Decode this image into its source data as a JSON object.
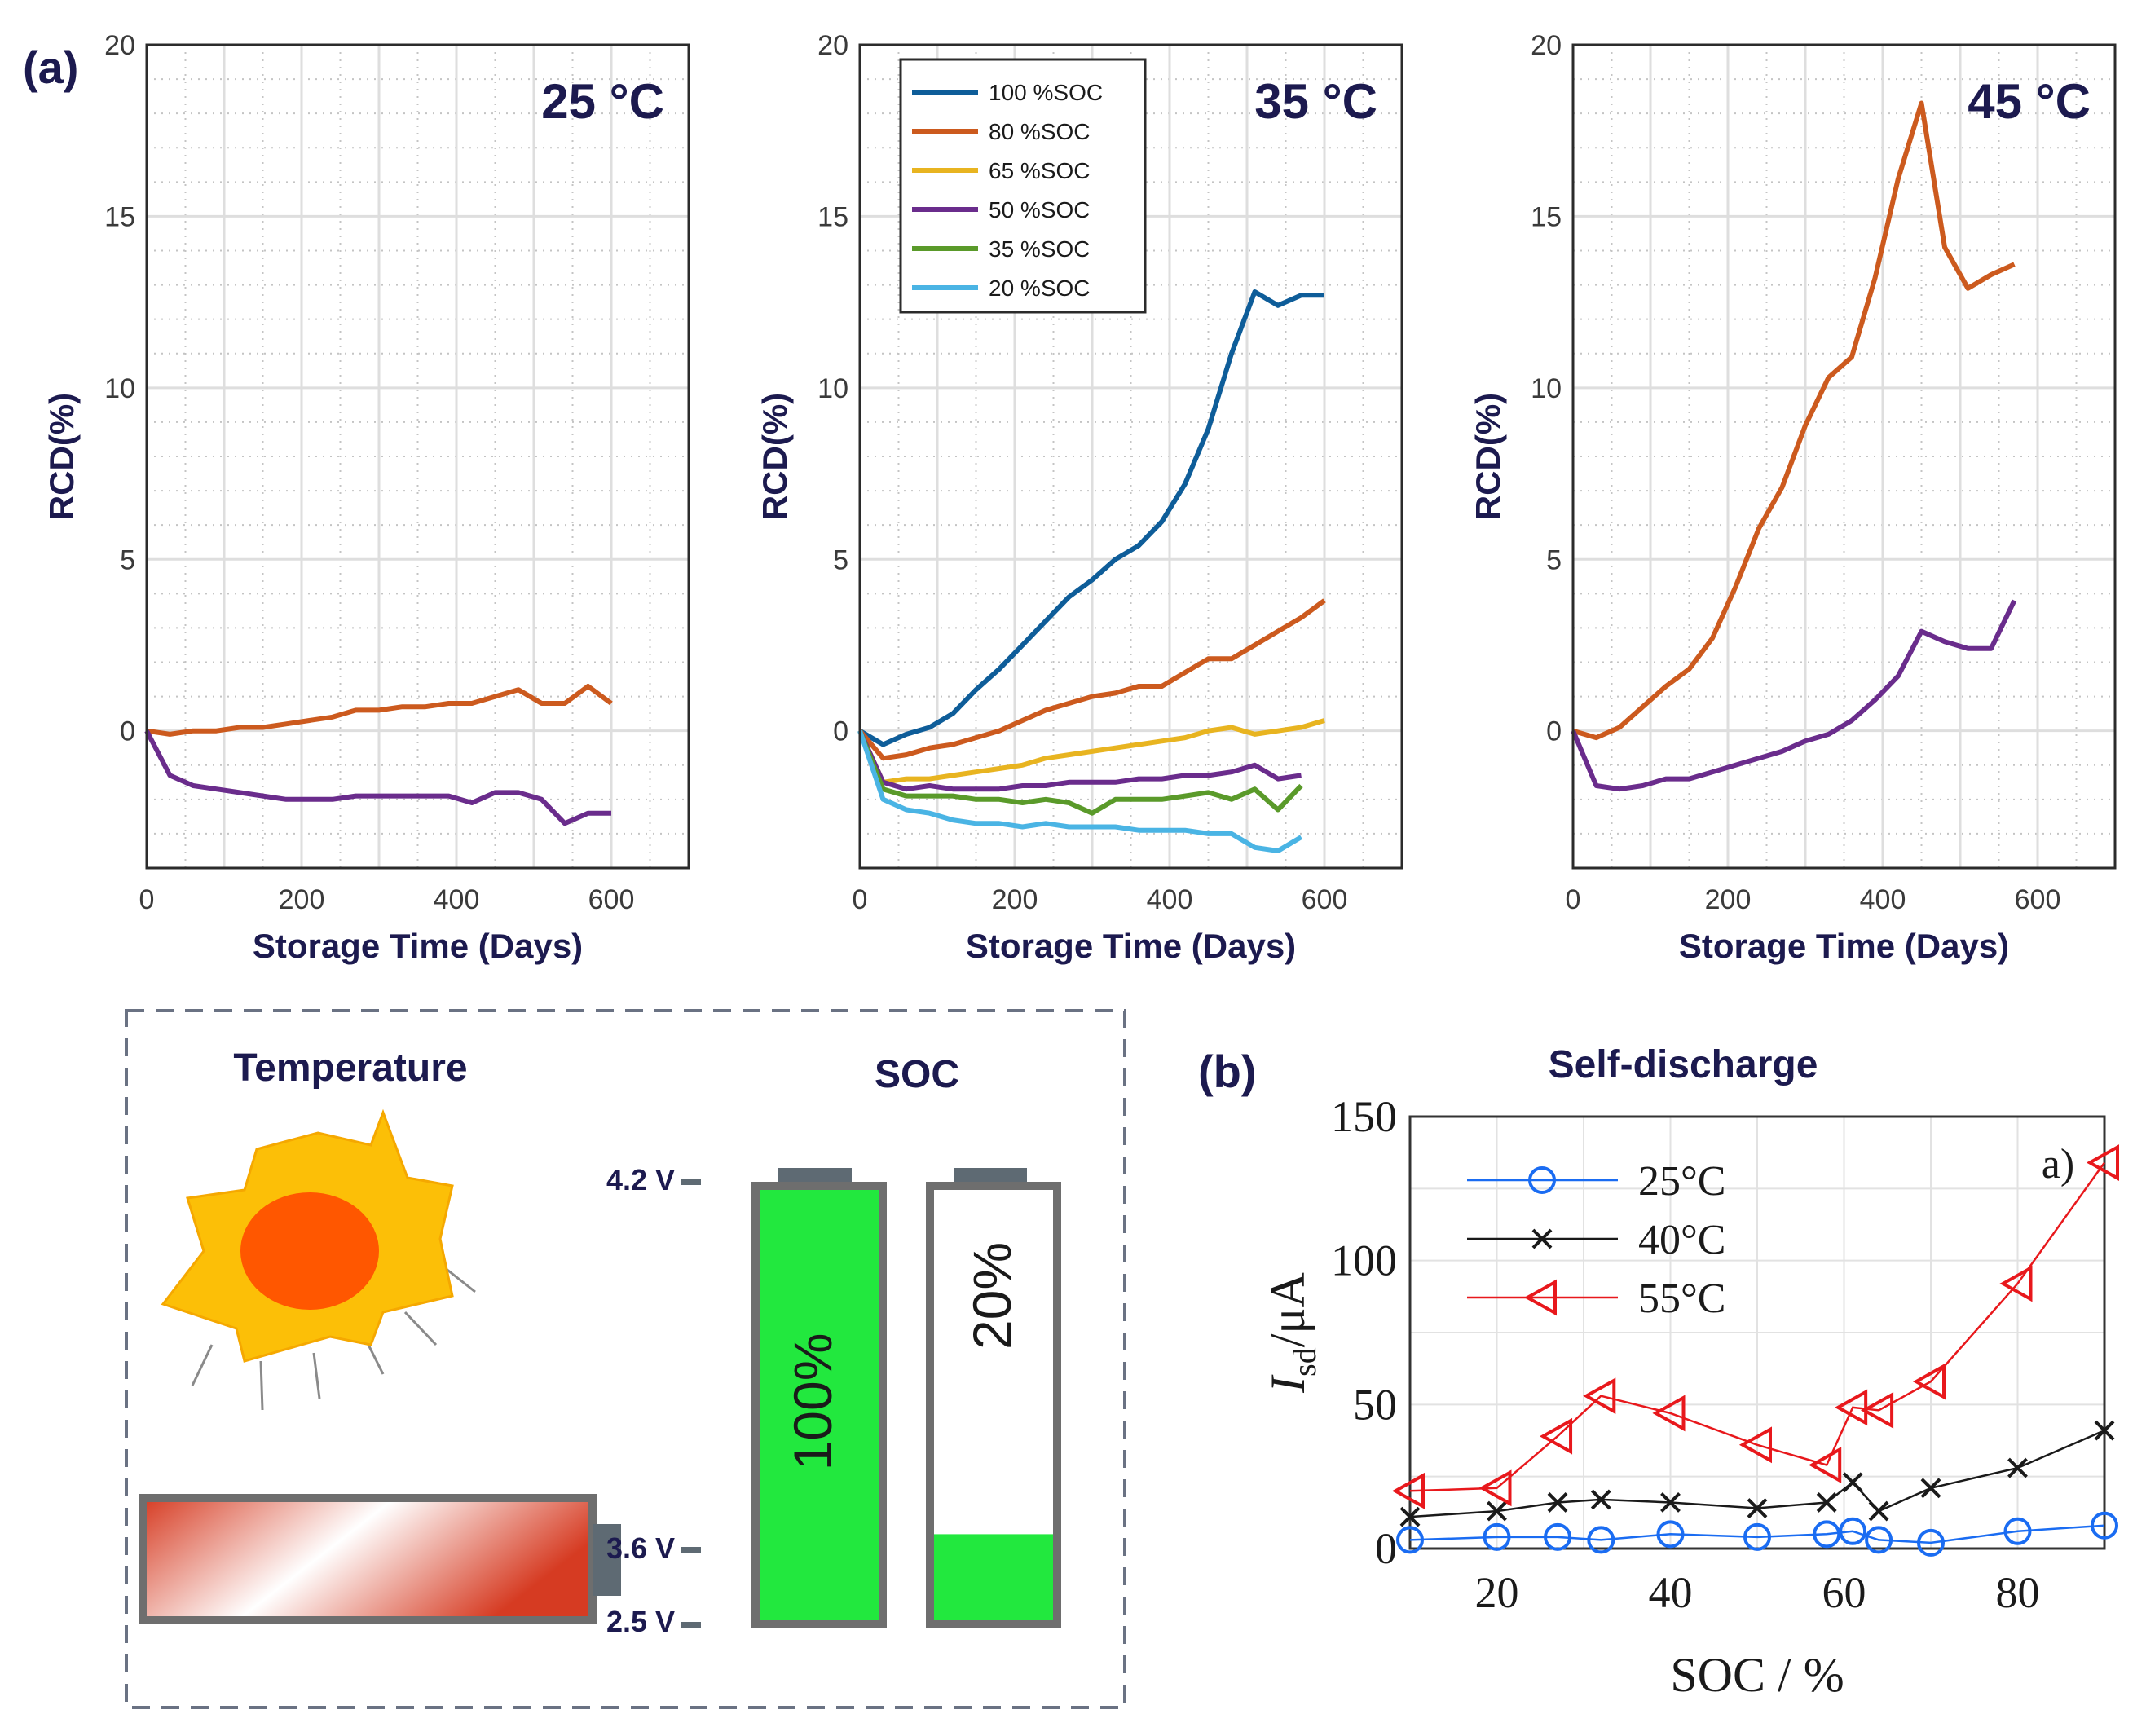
{
  "panel_a_label": "(a)",
  "panel_b_label": "(b)",
  "colors": {
    "soc100": "#0e5d99",
    "soc80": "#cc5a1e",
    "soc65": "#e8b420",
    "soc50": "#6a2c8c",
    "soc35": "#5a9a2a",
    "soc20": "#4ab4e4",
    "c25": "#1a6cf2",
    "c40": "#1a1a1a",
    "c55": "#e8181c",
    "navy": "#1c1a4f",
    "battery_green": "#22e83e"
  },
  "chart_data": [
    {
      "type": "line",
      "title": "25 °C",
      "xlabel": "Storage Time (Days)",
      "ylabel": "RCD(%)",
      "xlim": [
        0,
        700
      ],
      "ylim": [
        -4,
        20
      ],
      "xticks": [
        "0",
        "200",
        "400",
        "600"
      ],
      "yticks": [
        "0",
        "5",
        "10",
        "15",
        "20"
      ],
      "series": [
        {
          "name": "80 %SOC",
          "color": "#cc5a1e",
          "x": [
            0,
            30,
            60,
            90,
            120,
            150,
            180,
            210,
            240,
            270,
            300,
            330,
            360,
            390,
            420,
            450,
            480,
            510,
            540,
            570,
            600
          ],
          "y": [
            0,
            -0.1,
            0,
            0,
            0.1,
            0.1,
            0.2,
            0.3,
            0.4,
            0.6,
            0.6,
            0.7,
            0.7,
            0.8,
            0.8,
            1.0,
            1.2,
            0.8,
            0.8,
            1.3,
            0.8
          ]
        },
        {
          "name": "50 %SOC",
          "color": "#6a2c8c",
          "x": [
            0,
            30,
            60,
            90,
            120,
            150,
            180,
            210,
            240,
            270,
            300,
            330,
            360,
            390,
            420,
            450,
            480,
            510,
            540,
            570,
            600
          ],
          "y": [
            0,
            -1.3,
            -1.6,
            -1.7,
            -1.8,
            -1.9,
            -2.0,
            -2.0,
            -2.0,
            -1.9,
            -1.9,
            -1.9,
            -1.9,
            -1.9,
            -2.1,
            -1.8,
            -1.8,
            -2.0,
            -2.7,
            -2.4,
            -2.4
          ]
        }
      ]
    },
    {
      "type": "line",
      "title": "35 °C",
      "xlabel": "Storage Time (Days)",
      "ylabel": "RCD(%)",
      "xlim": [
        0,
        700
      ],
      "ylim": [
        -4,
        20
      ],
      "xticks": [
        "0",
        "200",
        "400",
        "600"
      ],
      "yticks": [
        "0",
        "5",
        "10",
        "15",
        "20"
      ],
      "legend": [
        "100 %SOC",
        "80 %SOC",
        "65 %SOC",
        "50 %SOC",
        "35 %SOC",
        "20 %SOC"
      ],
      "series": [
        {
          "name": "100 %SOC",
          "color": "#0e5d99",
          "x": [
            0,
            30,
            60,
            90,
            120,
            150,
            180,
            210,
            240,
            270,
            300,
            330,
            360,
            390,
            420,
            450,
            480,
            510,
            540,
            570,
            600
          ],
          "y": [
            0,
            -0.4,
            -0.1,
            0.1,
            0.5,
            1.2,
            1.8,
            2.5,
            3.2,
            3.9,
            4.4,
            5.0,
            5.4,
            6.1,
            7.2,
            8.8,
            11.0,
            12.8,
            12.4,
            12.7,
            12.7
          ]
        },
        {
          "name": "80 %SOC",
          "color": "#cc5a1e",
          "x": [
            0,
            30,
            60,
            90,
            120,
            150,
            180,
            210,
            240,
            270,
            300,
            330,
            360,
            390,
            420,
            450,
            480,
            510,
            540,
            570,
            600
          ],
          "y": [
            0,
            -0.8,
            -0.7,
            -0.5,
            -0.4,
            -0.2,
            0,
            0.3,
            0.6,
            0.8,
            1.0,
            1.1,
            1.3,
            1.3,
            1.7,
            2.1,
            2.1,
            2.5,
            2.9,
            3.3,
            3.8
          ]
        },
        {
          "name": "65 %SOC",
          "color": "#e8b420",
          "x": [
            0,
            30,
            60,
            90,
            120,
            150,
            180,
            210,
            240,
            270,
            300,
            330,
            360,
            390,
            420,
            450,
            480,
            510,
            540,
            570,
            600
          ],
          "y": [
            0,
            -1.5,
            -1.4,
            -1.4,
            -1.3,
            -1.2,
            -1.1,
            -1.0,
            -0.8,
            -0.7,
            -0.6,
            -0.5,
            -0.4,
            -0.3,
            -0.2,
            0,
            0.1,
            -0.1,
            0,
            0.1,
            0.3
          ]
        },
        {
          "name": "50 %SOC",
          "color": "#6a2c8c",
          "x": [
            0,
            30,
            60,
            90,
            120,
            150,
            180,
            210,
            240,
            270,
            300,
            330,
            360,
            390,
            420,
            450,
            480,
            510,
            540,
            570
          ],
          "y": [
            0,
            -1.5,
            -1.7,
            -1.6,
            -1.7,
            -1.7,
            -1.7,
            -1.6,
            -1.6,
            -1.5,
            -1.5,
            -1.5,
            -1.4,
            -1.4,
            -1.3,
            -1.3,
            -1.2,
            -1.0,
            -1.4,
            -1.3
          ]
        },
        {
          "name": "35 %SOC",
          "color": "#5a9a2a",
          "x": [
            0,
            30,
            60,
            90,
            120,
            150,
            180,
            210,
            240,
            270,
            300,
            330,
            360,
            390,
            420,
            450,
            480,
            510,
            540,
            570
          ],
          "y": [
            0,
            -1.7,
            -1.9,
            -1.9,
            -1.9,
            -2.0,
            -2.0,
            -2.1,
            -2.0,
            -2.1,
            -2.4,
            -2.0,
            -2.0,
            -2.0,
            -1.9,
            -1.8,
            -2.0,
            -1.7,
            -2.3,
            -1.6
          ]
        },
        {
          "name": "20 %SOC",
          "color": "#4ab4e4",
          "x": [
            0,
            30,
            60,
            90,
            120,
            150,
            180,
            210,
            240,
            270,
            300,
            330,
            360,
            390,
            420,
            450,
            480,
            510,
            540,
            570
          ],
          "y": [
            0,
            -2.0,
            -2.3,
            -2.4,
            -2.6,
            -2.7,
            -2.7,
            -2.8,
            -2.7,
            -2.8,
            -2.8,
            -2.8,
            -2.9,
            -2.9,
            -2.9,
            -3.0,
            -3.0,
            -3.4,
            -3.5,
            -3.1
          ]
        }
      ]
    },
    {
      "type": "line",
      "title": "45 °C",
      "xlabel": "Storage Time (Days)",
      "ylabel": "RCD(%)",
      "xlim": [
        0,
        700
      ],
      "ylim": [
        -4,
        20
      ],
      "xticks": [
        "0",
        "200",
        "400",
        "600"
      ],
      "yticks": [
        "0",
        "5",
        "10",
        "15",
        "20"
      ],
      "series": [
        {
          "name": "80 %SOC",
          "color": "#cc5a1e",
          "x": [
            0,
            30,
            60,
            90,
            120,
            150,
            180,
            210,
            240,
            270,
            300,
            330,
            360,
            390,
            420,
            450,
            480,
            510,
            540,
            570
          ],
          "y": [
            0,
            -0.2,
            0.1,
            0.7,
            1.3,
            1.8,
            2.7,
            4.2,
            5.9,
            7.1,
            8.9,
            10.3,
            10.9,
            13.2,
            16.1,
            18.3,
            14.1,
            12.9,
            13.3,
            13.6
          ]
        },
        {
          "name": "50 %SOC",
          "color": "#6a2c8c",
          "x": [
            0,
            30,
            60,
            90,
            120,
            150,
            180,
            210,
            240,
            270,
            300,
            330,
            360,
            390,
            420,
            450,
            480,
            510,
            540,
            570
          ],
          "y": [
            0,
            -1.6,
            -1.7,
            -1.6,
            -1.4,
            -1.4,
            -1.2,
            -1.0,
            -0.8,
            -0.6,
            -0.3,
            -0.1,
            0.3,
            0.9,
            1.6,
            2.9,
            2.6,
            2.4,
            2.4,
            3.8
          ]
        }
      ]
    },
    {
      "type": "line",
      "title": "Self-discharge",
      "xlabel": "SOC / %",
      "ylabel": "I_sd / μA",
      "ylabel_main": "I",
      "ylabel_sub": "sd",
      "ylabel_rest": "/μA",
      "xlim": [
        10,
        90
      ],
      "ylim": [
        0,
        150
      ],
      "xticks": [
        "20",
        "40",
        "60",
        "80"
      ],
      "yticks": [
        "0",
        "50",
        "100",
        "150"
      ],
      "annotation": "a)",
      "series": [
        {
          "name": "25°C",
          "color": "#1a6cf2",
          "marker": "circle",
          "x": [
            10,
            20,
            27,
            32,
            40,
            50,
            58,
            61,
            64,
            70,
            80,
            90
          ],
          "y": [
            3,
            4,
            4,
            3,
            5,
            4,
            5,
            6,
            3,
            2,
            6,
            8
          ]
        },
        {
          "name": "40°C",
          "color": "#1a1a1a",
          "marker": "x",
          "x": [
            10,
            20,
            27,
            32,
            40,
            50,
            58,
            61,
            64,
            70,
            80,
            90
          ],
          "y": [
            11,
            13,
            16,
            17,
            16,
            14,
            16,
            23,
            13,
            21,
            28,
            41
          ]
        },
        {
          "name": "55°C",
          "color": "#e8181c",
          "marker": "triangle-left",
          "x": [
            10,
            20,
            27,
            32,
            40,
            50,
            58,
            61,
            64,
            70,
            80,
            90
          ],
          "y": [
            20,
            21,
            39,
            53,
            47,
            36,
            29,
            49,
            48,
            58,
            92,
            134
          ]
        }
      ]
    }
  ],
  "diagram": {
    "temperature_title": "Temperature",
    "soc_title": "SOC",
    "voltages": [
      "4.2 V",
      "3.6 V",
      "2.5 V"
    ],
    "battery_full_label": "100%",
    "battery_low_label": "20%",
    "battery_full_level": 1.0,
    "battery_low_level": 0.2
  }
}
